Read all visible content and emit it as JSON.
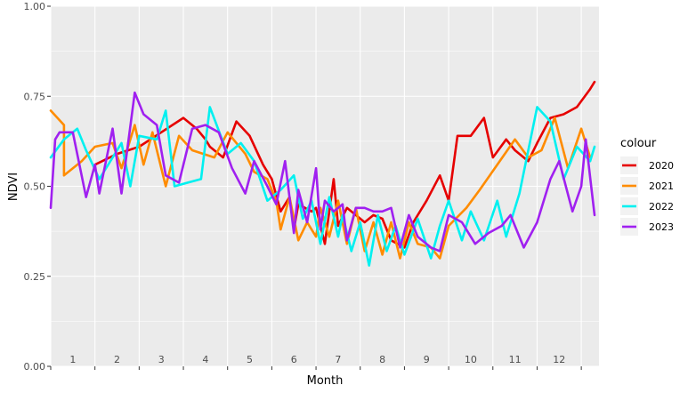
{
  "chart_data": {
    "type": "line",
    "xlabel": "Month",
    "ylabel": "NDVI",
    "ylim": [
      0,
      1
    ],
    "y_ticks": [
      "0.00",
      "0.25",
      "0.50",
      "0.75",
      "1.00"
    ],
    "y_tick_values": [
      0,
      0.25,
      0.5,
      0.75,
      1.0
    ],
    "x_range": [
      1,
      13.4
    ],
    "month_labels": [
      "1",
      "2",
      "3",
      "4",
      "5",
      "6",
      "7",
      "8",
      "9",
      "10",
      "11",
      "12"
    ],
    "legend_title": "colour",
    "legend_position": "right",
    "grid": true,
    "panel_background": "#ebebeb",
    "series": [
      {
        "name": "2020",
        "color": "#e60000",
        "x": [
          2.0,
          2.5,
          3.0,
          3.5,
          4.0,
          4.3,
          4.5,
          4.6,
          4.9,
          5.2,
          5.5,
          5.8,
          6.0,
          6.2,
          6.4,
          6.5,
          6.6,
          6.9,
          7.0,
          7.2,
          7.4,
          7.5,
          7.7,
          7.9,
          8.1,
          8.3,
          8.5,
          8.7,
          9.0,
          9.2,
          9.5,
          9.8,
          10.0,
          10.2,
          10.5,
          10.8,
          11.0,
          11.3,
          11.5,
          11.8,
          12.0,
          12.3,
          12.6,
          12.9,
          13.2,
          13.3
        ],
        "values": [
          0.56,
          0.59,
          0.61,
          0.65,
          0.69,
          0.66,
          0.63,
          0.61,
          0.58,
          0.68,
          0.64,
          0.56,
          0.52,
          0.43,
          0.47,
          0.38,
          0.45,
          0.43,
          0.44,
          0.34,
          0.52,
          0.39,
          0.44,
          0.42,
          0.4,
          0.42,
          0.41,
          0.35,
          0.33,
          0.4,
          0.46,
          0.53,
          0.46,
          0.64,
          0.64,
          0.69,
          0.58,
          0.63,
          0.6,
          0.57,
          0.62,
          0.69,
          0.7,
          0.72,
          0.77,
          0.79
        ]
      },
      {
        "name": "2021",
        "color": "#ff8c00",
        "x": [
          1.0,
          1.3,
          1.3,
          1.7,
          2.0,
          2.4,
          2.6,
          2.9,
          3.1,
          3.3,
          3.6,
          3.9,
          4.2,
          4.7,
          5.0,
          5.4,
          5.6,
          5.9,
          6.1,
          6.2,
          6.4,
          6.6,
          6.8,
          7.0,
          7.1,
          7.3,
          7.5,
          7.7,
          7.9,
          8.1,
          8.3,
          8.5,
          8.7,
          8.9,
          9.1,
          9.3,
          9.6,
          9.8,
          10.0,
          10.4,
          10.7,
          11.1,
          11.5,
          11.8,
          12.1,
          12.4,
          12.7,
          13.0,
          13.2
        ],
        "values": [
          0.71,
          0.67,
          0.53,
          0.57,
          0.61,
          0.62,
          0.55,
          0.67,
          0.56,
          0.65,
          0.5,
          0.64,
          0.6,
          0.58,
          0.65,
          0.59,
          0.54,
          0.52,
          0.46,
          0.38,
          0.47,
          0.35,
          0.4,
          0.36,
          0.44,
          0.36,
          0.46,
          0.34,
          0.44,
          0.32,
          0.4,
          0.31,
          0.4,
          0.3,
          0.4,
          0.34,
          0.33,
          0.3,
          0.39,
          0.44,
          0.49,
          0.56,
          0.63,
          0.58,
          0.6,
          0.69,
          0.55,
          0.66,
          0.58
        ]
      },
      {
        "name": "2022",
        "color": "#00f0f0",
        "x": [
          1.0,
          1.3,
          1.6,
          1.8,
          2.1,
          2.3,
          2.6,
          2.8,
          3.0,
          3.4,
          3.6,
          3.8,
          4.1,
          4.4,
          4.6,
          5.0,
          5.3,
          5.6,
          5.9,
          6.2,
          6.5,
          6.7,
          6.9,
          7.1,
          7.3,
          7.5,
          7.6,
          7.8,
          8.0,
          8.2,
          8.4,
          8.6,
          8.8,
          9.0,
          9.3,
          9.6,
          9.8,
          10.0,
          10.3,
          10.5,
          10.8,
          11.1,
          11.3,
          11.6,
          12.0,
          12.3,
          12.6,
          12.9,
          13.2,
          13.3
        ],
        "values": [
          0.58,
          0.63,
          0.66,
          0.6,
          0.52,
          0.56,
          0.62,
          0.5,
          0.64,
          0.63,
          0.71,
          0.5,
          0.51,
          0.52,
          0.72,
          0.59,
          0.62,
          0.57,
          0.46,
          0.49,
          0.53,
          0.41,
          0.46,
          0.34,
          0.47,
          0.36,
          0.42,
          0.32,
          0.4,
          0.28,
          0.42,
          0.32,
          0.39,
          0.31,
          0.41,
          0.3,
          0.39,
          0.46,
          0.35,
          0.43,
          0.35,
          0.46,
          0.36,
          0.48,
          0.72,
          0.68,
          0.52,
          0.61,
          0.57,
          0.61
        ]
      },
      {
        "name": "2023",
        "color": "#a020f0",
        "x": [
          1.0,
          1.1,
          1.2,
          1.5,
          1.8,
          2.0,
          2.1,
          2.4,
          2.6,
          2.9,
          3.1,
          3.4,
          3.6,
          3.9,
          4.2,
          4.5,
          4.8,
          5.1,
          5.4,
          5.6,
          5.9,
          6.1,
          6.3,
          6.5,
          6.6,
          6.8,
          7.0,
          7.1,
          7.2,
          7.4,
          7.6,
          7.7,
          7.9,
          8.1,
          8.3,
          8.5,
          8.7,
          8.9,
          9.1,
          9.3,
          9.6,
          9.8,
          10.0,
          10.3,
          10.6,
          10.9,
          11.2,
          11.4,
          11.7,
          12.0,
          12.3,
          12.5,
          12.8,
          13.0,
          13.1,
          13.3
        ],
        "values": [
          0.44,
          0.63,
          0.65,
          0.65,
          0.47,
          0.56,
          0.48,
          0.66,
          0.48,
          0.76,
          0.7,
          0.67,
          0.53,
          0.51,
          0.66,
          0.67,
          0.65,
          0.55,
          0.48,
          0.57,
          0.5,
          0.45,
          0.57,
          0.37,
          0.49,
          0.4,
          0.55,
          0.38,
          0.46,
          0.43,
          0.45,
          0.35,
          0.44,
          0.44,
          0.43,
          0.43,
          0.44,
          0.33,
          0.42,
          0.36,
          0.33,
          0.32,
          0.42,
          0.4,
          0.34,
          0.37,
          0.39,
          0.42,
          0.33,
          0.4,
          0.52,
          0.57,
          0.43,
          0.5,
          0.63,
          0.42
        ]
      }
    ]
  }
}
